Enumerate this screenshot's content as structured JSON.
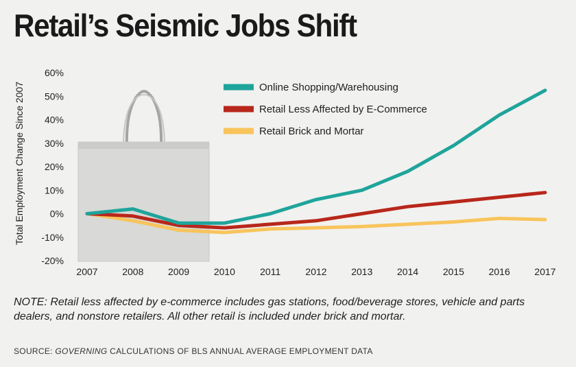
{
  "title": "Retail’s Seismic Jobs Shift",
  "note": "NOTE: Retail less affected by e-commerce includes gas stations, food/beverage stores, vehicle and parts dealers, and nonstore retailers. All other retail is included under brick and mortar.",
  "source": {
    "prefix": "SOURCE: ",
    "italic": "GOVERNING",
    "suffix": " CALCULATIONS OF BLS ANNUAL AVERAGE EMPLOYMENT DATA"
  },
  "chart_data": {
    "type": "line",
    "title": "Retail’s Seismic Jobs Shift",
    "xlabel": "",
    "ylabel": "Total Employment Change Since 2007",
    "x": [
      "2007",
      "2008",
      "2009",
      "2010",
      "2011",
      "2012",
      "2013",
      "2014",
      "2015",
      "2016",
      "2017"
    ],
    "ylim": [
      -20,
      60
    ],
    "yticks": [
      60,
      50,
      40,
      30,
      20,
      10,
      0,
      -10,
      -20
    ],
    "ytick_labels": [
      "60%",
      "50%",
      "40%",
      "30%",
      "20%",
      "10%",
      "0%",
      "-10%",
      "-20%"
    ],
    "grid": false,
    "legend_position": "top-center",
    "series": [
      {
        "name": "Online Shopping/Warehousing",
        "color": "#1fa49b",
        "values": [
          0,
          2,
          -4,
          -4,
          0,
          6,
          10,
          18,
          29,
          42,
          52.5
        ]
      },
      {
        "name": "Retail Less Affected by E-Commerce",
        "color": "#b8271b",
        "values": [
          0,
          -1,
          -5,
          -6,
          -4.5,
          -3,
          0,
          3,
          5,
          7,
          9
        ]
      },
      {
        "name": "Retail Brick and Mortar",
        "color": "#f8c45c",
        "values": [
          0,
          -3,
          -7,
          -8,
          -6.5,
          -6,
          -5.5,
          -4.5,
          -3.5,
          -2,
          -2.5
        ]
      }
    ]
  }
}
